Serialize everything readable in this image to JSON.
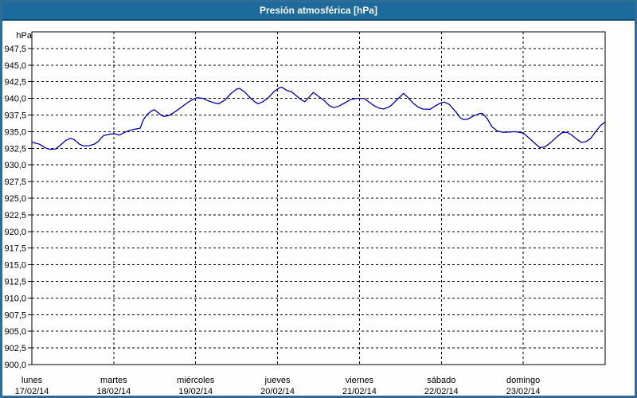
{
  "window": {
    "title": "Presión atmosférica [hPa]"
  },
  "colors": {
    "title_bar": "#1d6a9d",
    "title_bar_edge": "#0e4a75",
    "window_border": "#2e6d98",
    "background": "#fdfefd",
    "grid": "#000000",
    "series_line": "#0000aa",
    "text": "#000000"
  },
  "chart_data": {
    "type": "line",
    "title": "Presión atmosférica [hPa]",
    "y_unit_label": "hPa",
    "ylim": [
      900,
      950
    ],
    "y_tick_step": 2.5,
    "y_tick_values": [
      947.5,
      945.0,
      942.5,
      940.0,
      937.5,
      935.0,
      932.5,
      930.0,
      927.5,
      925.0,
      922.5,
      920.0,
      917.5,
      915.0,
      912.5,
      910.0,
      907.5,
      905.0,
      902.5,
      900.0
    ],
    "y_tick_labels": [
      "947,5",
      "945,0",
      "942,5",
      "940,0",
      "937,5",
      "935,0",
      "932,5",
      "930,0",
      "927,5",
      "925,0",
      "922,5",
      "920,0",
      "917,5",
      "915,0",
      "912,5",
      "910,0",
      "907,5",
      "905,0",
      "902,5",
      "900,0"
    ],
    "x_hours_total": 168,
    "x_day_boundary_hours": [
      24,
      48,
      72,
      96,
      120,
      144
    ],
    "x_days": [
      {
        "name": "lunes",
        "date": "17/02/14",
        "hour": 0
      },
      {
        "name": "martes",
        "date": "18/02/14",
        "hour": 24
      },
      {
        "name": "miércoles",
        "date": "19/02/14",
        "hour": 48
      },
      {
        "name": "jueves",
        "date": "20/02/14",
        "hour": 72
      },
      {
        "name": "viernes",
        "date": "21/02/14",
        "hour": 96
      },
      {
        "name": "sábado",
        "date": "22/02/14",
        "hour": 120
      },
      {
        "name": "domingo",
        "date": "23/02/14",
        "hour": 144
      }
    ],
    "grid": "dashed",
    "legend": "none",
    "series": [
      {
        "name": "Presión atmosférica",
        "unit": "hPa",
        "color": "#0000aa",
        "points": [
          [
            0,
            933.4
          ],
          [
            2.3,
            933.1
          ],
          [
            4.2,
            932.5
          ],
          [
            5.4,
            932.35
          ],
          [
            7,
            932.4
          ],
          [
            8.4,
            933.0
          ],
          [
            10,
            933.7
          ],
          [
            11.2,
            934.0
          ],
          [
            12.4,
            933.8
          ],
          [
            14,
            933.1
          ],
          [
            15.2,
            932.85
          ],
          [
            16.8,
            932.9
          ],
          [
            18.2,
            933.1
          ],
          [
            19.4,
            933.5
          ],
          [
            21,
            934.4
          ],
          [
            22.6,
            934.6
          ],
          [
            24,
            934.7
          ],
          [
            25.7,
            934.5
          ],
          [
            27.3,
            934.9
          ],
          [
            28.7,
            935.2
          ],
          [
            30.3,
            935.4
          ],
          [
            31.7,
            935.5
          ],
          [
            32.7,
            936.8
          ],
          [
            33.8,
            937.6
          ],
          [
            35,
            938.1
          ],
          [
            35.9,
            938.3
          ],
          [
            37.3,
            937.7
          ],
          [
            38.5,
            937.3
          ],
          [
            40.1,
            937.4
          ],
          [
            42,
            938.0
          ],
          [
            43.9,
            938.7
          ],
          [
            45.7,
            939.4
          ],
          [
            47.4,
            939.9
          ],
          [
            48.5,
            940.1
          ],
          [
            50.2,
            940.0
          ],
          [
            51.8,
            939.6
          ],
          [
            53.7,
            939.3
          ],
          [
            54.8,
            939.2
          ],
          [
            56.7,
            939.8
          ],
          [
            58.3,
            940.7
          ],
          [
            60,
            941.4
          ],
          [
            60.9,
            941.5
          ],
          [
            62.5,
            940.9
          ],
          [
            63.9,
            940.1
          ],
          [
            65.3,
            939.5
          ],
          [
            66.3,
            939.2
          ],
          [
            67.7,
            939.5
          ],
          [
            69.3,
            940.1
          ],
          [
            70.9,
            941.0
          ],
          [
            72.6,
            941.6
          ],
          [
            73.2,
            941.7
          ],
          [
            74.7,
            941.2
          ],
          [
            76.1,
            941.0
          ],
          [
            77.5,
            940.4
          ],
          [
            78.9,
            939.8
          ],
          [
            80,
            939.5
          ],
          [
            82.5,
            940.9
          ],
          [
            84,
            940.3
          ],
          [
            85.6,
            939.7
          ],
          [
            87.2,
            938.9
          ],
          [
            88.6,
            938.6
          ],
          [
            90.2,
            938.9
          ],
          [
            91.6,
            939.3
          ],
          [
            93.3,
            939.8
          ],
          [
            94.9,
            940.0
          ],
          [
            96,
            940.0
          ],
          [
            97.4,
            940.0
          ],
          [
            98.9,
            939.4
          ],
          [
            100.3,
            938.9
          ],
          [
            101.9,
            938.5
          ],
          [
            103.1,
            938.4
          ],
          [
            105,
            938.8
          ],
          [
            106.6,
            939.6
          ],
          [
            108,
            940.3
          ],
          [
            108.9,
            940.75
          ],
          [
            110.3,
            940.1
          ],
          [
            111.7,
            939.3
          ],
          [
            113.2,
            938.7
          ],
          [
            114.6,
            938.4
          ],
          [
            116.7,
            938.35
          ],
          [
            118.3,
            938.9
          ],
          [
            119.7,
            939.3
          ],
          [
            120.9,
            939.45
          ],
          [
            122.3,
            939.1
          ],
          [
            123.7,
            938.3
          ],
          [
            124.4,
            937.9
          ],
          [
            125.5,
            937.1
          ],
          [
            126.6,
            936.8
          ],
          [
            127.8,
            936.9
          ],
          [
            129.4,
            937.35
          ],
          [
            131.1,
            937.7
          ],
          [
            132,
            937.75
          ],
          [
            133.4,
            937.0
          ],
          [
            134.8,
            935.75
          ],
          [
            136.4,
            935.1
          ],
          [
            138.1,
            934.9
          ],
          [
            140,
            934.95
          ],
          [
            141.4,
            935.0
          ],
          [
            142.8,
            934.9
          ],
          [
            144,
            934.8
          ],
          [
            145.8,
            934.0
          ],
          [
            147.5,
            933.2
          ],
          [
            148.9,
            932.6
          ],
          [
            150.3,
            932.7
          ],
          [
            152.1,
            933.4
          ],
          [
            154,
            934.3
          ],
          [
            155.4,
            934.85
          ],
          [
            156.8,
            934.9
          ],
          [
            158.2,
            934.5
          ],
          [
            159.6,
            933.9
          ],
          [
            161,
            933.4
          ],
          [
            162.4,
            933.5
          ],
          [
            163.8,
            934.0
          ],
          [
            165.2,
            935.0
          ],
          [
            166.6,
            935.9
          ],
          [
            167.8,
            936.4
          ]
        ]
      }
    ]
  }
}
